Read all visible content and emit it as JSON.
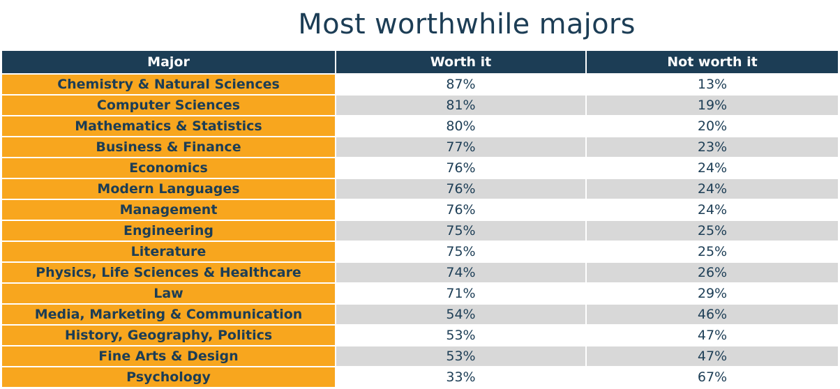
{
  "title": "Most worthwhile majors",
  "chart_data": {
    "type": "table",
    "title": "Most worthwhile majors",
    "columns": [
      "Major",
      "Worth it",
      "Not worth it"
    ],
    "rows": [
      {
        "major": "Chemistry & Natural Sciences",
        "worth": "87%",
        "not_worth": "13%"
      },
      {
        "major": "Computer Sciences",
        "worth": "81%",
        "not_worth": "19%"
      },
      {
        "major": "Mathematics & Statistics",
        "worth": "80%",
        "not_worth": "20%"
      },
      {
        "major": "Business & Finance",
        "worth": "77%",
        "not_worth": "23%"
      },
      {
        "major": "Economics",
        "worth": "76%",
        "not_worth": "24%"
      },
      {
        "major": "Modern Languages",
        "worth": "76%",
        "not_worth": "24%"
      },
      {
        "major": "Management",
        "worth": "76%",
        "not_worth": "24%"
      },
      {
        "major": "Engineering",
        "worth": "75%",
        "not_worth": "25%"
      },
      {
        "major": "Literature",
        "worth": "75%",
        "not_worth": "25%"
      },
      {
        "major": "Physics, Life Sciences & Healthcare",
        "worth": "74%",
        "not_worth": "26%"
      },
      {
        "major": "Law",
        "worth": "71%",
        "not_worth": "29%"
      },
      {
        "major": "Media, Marketing & Communication",
        "worth": "54%",
        "not_worth": "46%"
      },
      {
        "major": "History, Geography, Politics",
        "worth": "53%",
        "not_worth": "47%"
      },
      {
        "major": "Fine Arts & Design",
        "worth": "53%",
        "not_worth": "47%"
      },
      {
        "major": "Psychology",
        "worth": "33%",
        "not_worth": "67%"
      }
    ]
  },
  "colors": {
    "header_bg": "#1c3d55",
    "major_bg": "#f8a61e",
    "stripe_bg": "#d8d8d8",
    "text": "#1c3d55"
  }
}
